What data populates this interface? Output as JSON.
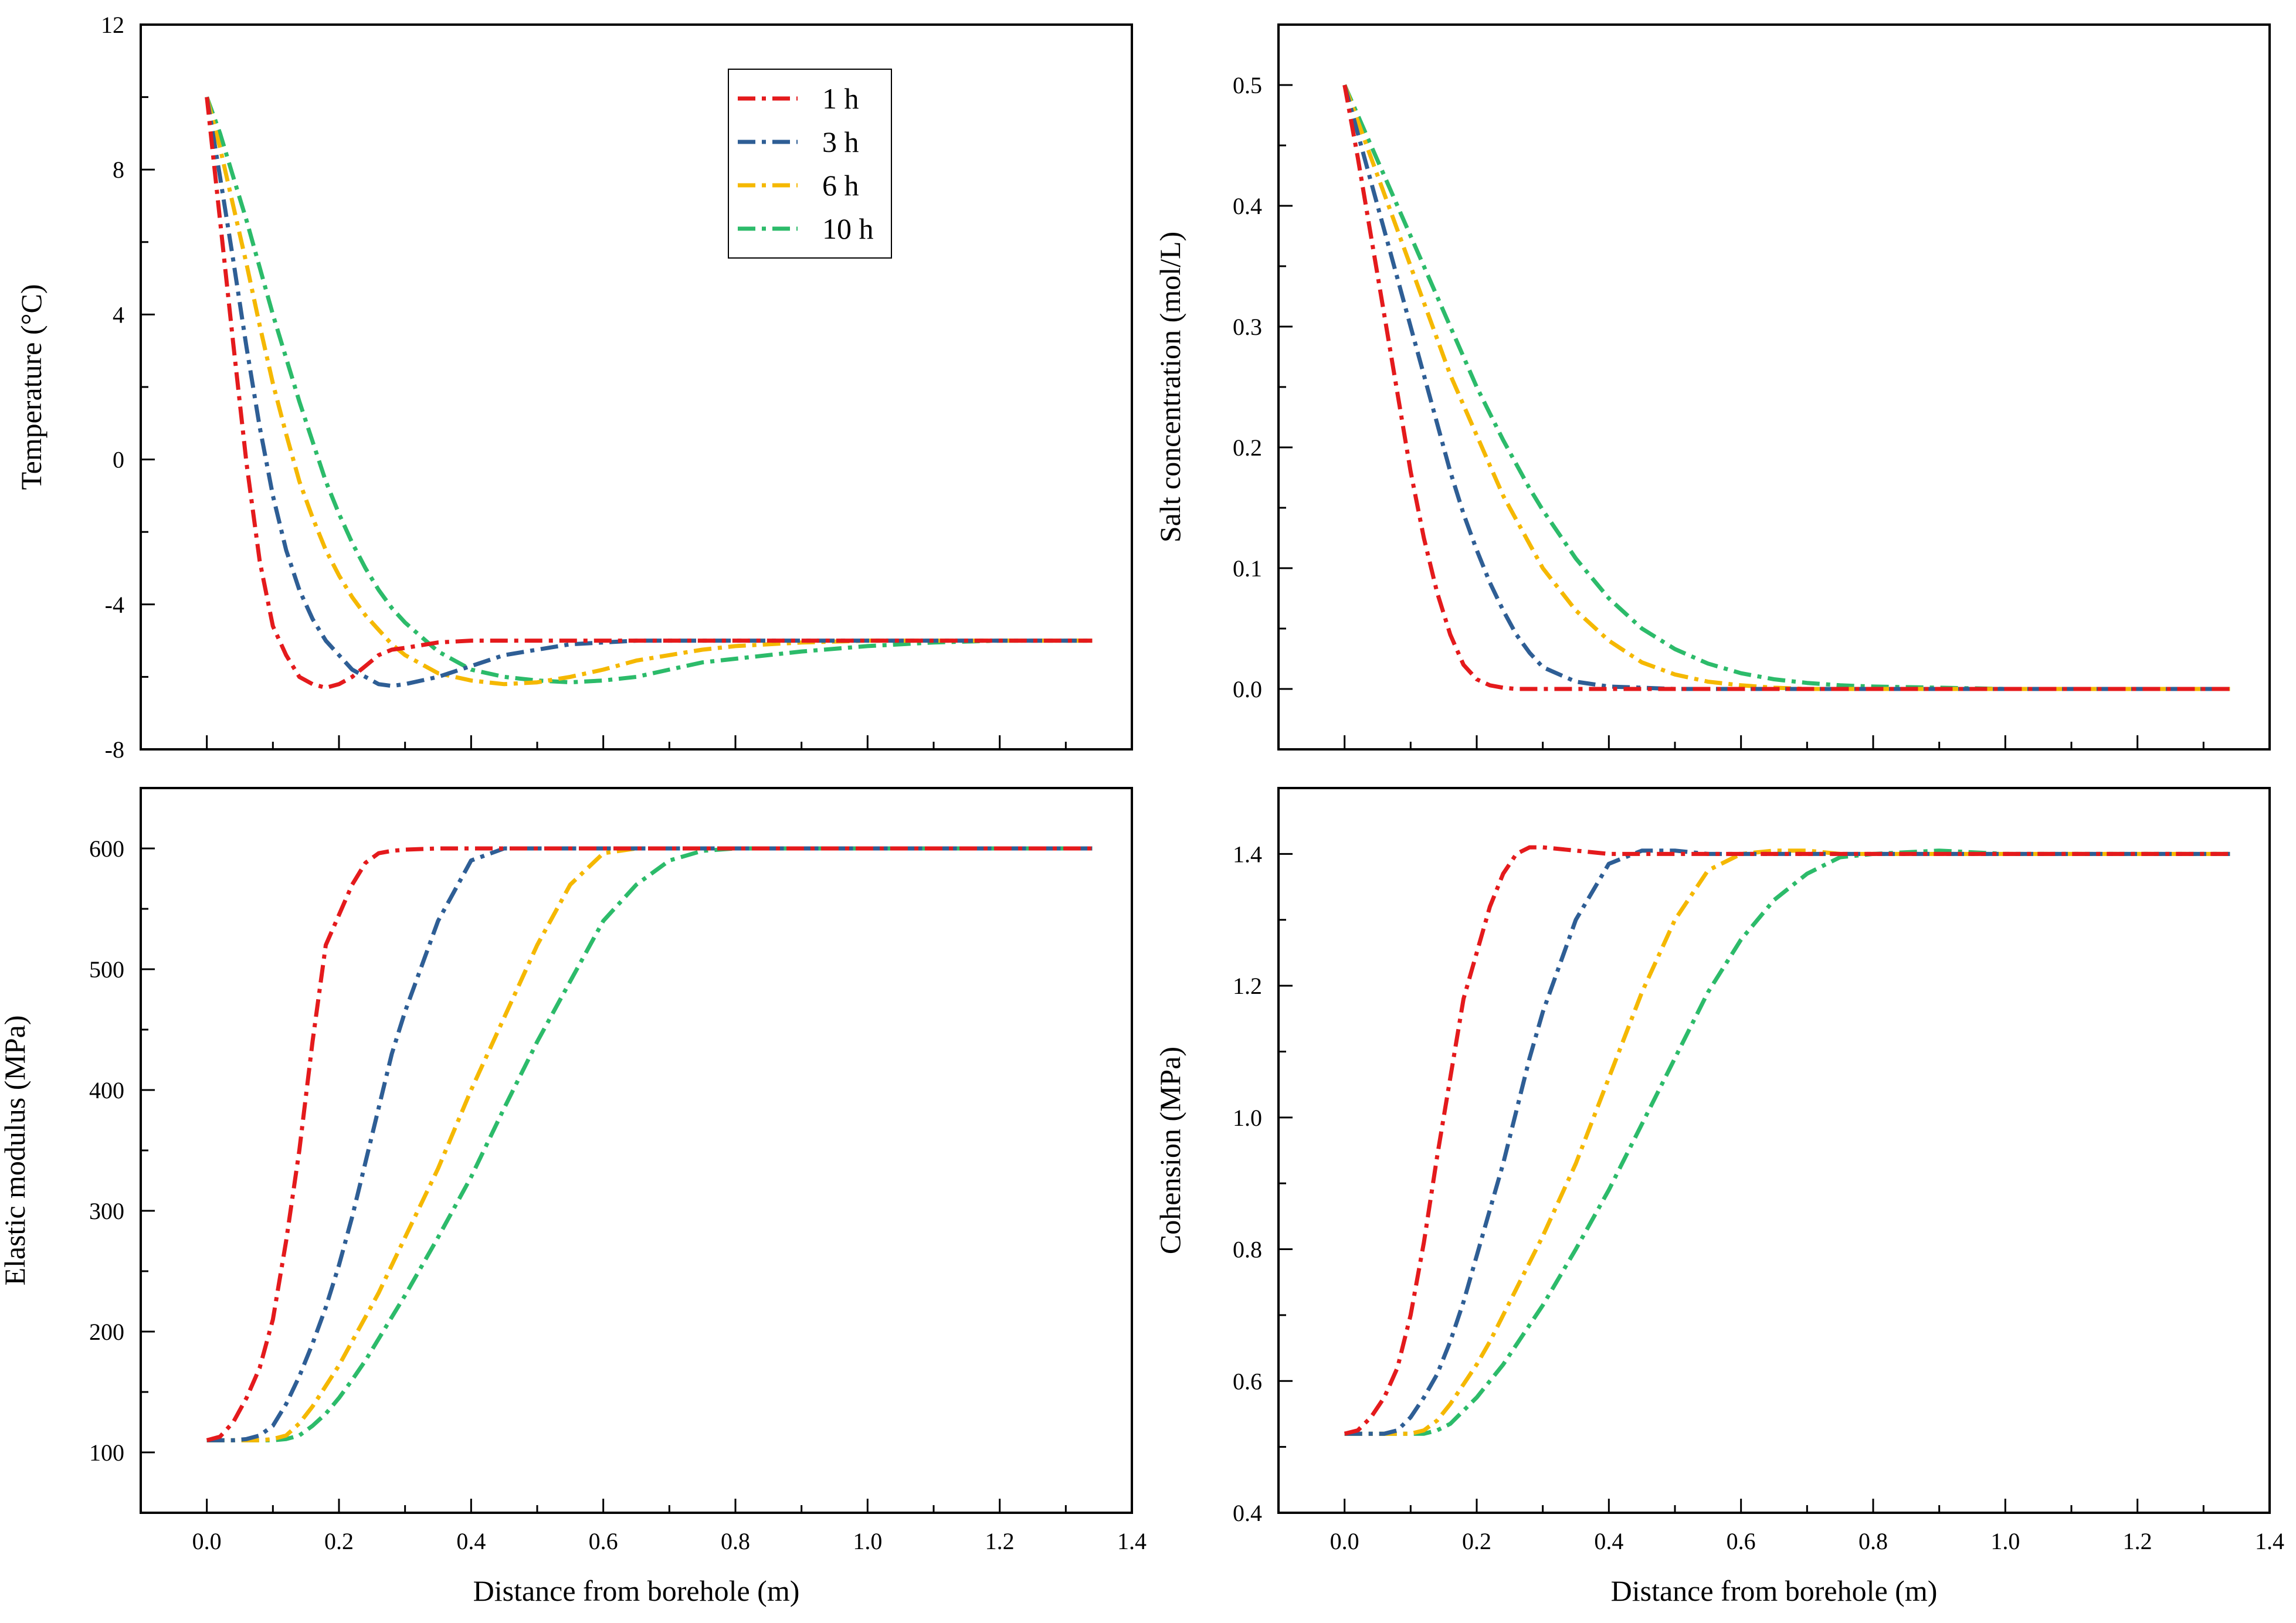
{
  "figure": {
    "x_axis_title": "Distance from borehole (m)",
    "legend_labels": [
      "1 h",
      "3 h",
      "6 h",
      "10 h"
    ]
  },
  "chart_data": [
    {
      "id": "temperature",
      "type": "line",
      "ylabel": "Temperature (°C)",
      "xlabel": "",
      "xlim": [
        -0.1,
        1.4
      ],
      "ylim": [
        -8,
        12
      ],
      "xticks": [
        0.0,
        0.2,
        0.4,
        0.6,
        0.8,
        1.0,
        1.2,
        1.4
      ],
      "yticks": [
        -8,
        -4,
        0,
        4,
        8,
        12
      ],
      "show_x_tick_labels": false,
      "legend": "top-center",
      "x": [
        0,
        0.02,
        0.04,
        0.06,
        0.08,
        0.1,
        0.12,
        0.14,
        0.16,
        0.18,
        0.2,
        0.22,
        0.24,
        0.26,
        0.28,
        0.3,
        0.35,
        0.4,
        0.45,
        0.5,
        0.55,
        0.6,
        0.65,
        0.7,
        0.75,
        0.8,
        0.9,
        1.0,
        1.1,
        1.2,
        1.34
      ],
      "series": [
        {
          "name": "1 h",
          "color": "#e41a1c",
          "values": [
            10.0,
            6.6,
            3.2,
            -0.1,
            -2.8,
            -4.6,
            -5.4,
            -6.0,
            -6.2,
            -6.3,
            -6.2,
            -6.0,
            -5.7,
            -5.4,
            -5.25,
            -5.2,
            -5.05,
            -5.0,
            -5.0,
            -5.0,
            -5.0,
            -5.0,
            -5.0,
            -5.0,
            -5.0,
            -5.0,
            -5.0,
            -5.0,
            -5.0,
            -5.0,
            -5.0
          ]
        },
        {
          "name": "3 h",
          "color": "#2e5e95",
          "values": [
            10.0,
            7.8,
            5.5,
            3.1,
            0.9,
            -1.0,
            -2.5,
            -3.6,
            -4.4,
            -5.0,
            -5.4,
            -5.8,
            -6.0,
            -6.2,
            -6.25,
            -6.2,
            -6.0,
            -5.7,
            -5.4,
            -5.25,
            -5.1,
            -5.05,
            -5.0,
            -5.0,
            -5.0,
            -5.0,
            -5.0,
            -5.0,
            -5.0,
            -5.0,
            -5.0
          ]
        },
        {
          "name": "6 h",
          "color": "#f5b800",
          "values": [
            10.0,
            8.6,
            7.0,
            5.4,
            3.7,
            2.1,
            0.7,
            -0.6,
            -1.6,
            -2.5,
            -3.2,
            -3.8,
            -4.3,
            -4.7,
            -5.1,
            -5.4,
            -5.9,
            -6.1,
            -6.2,
            -6.15,
            -6.0,
            -5.8,
            -5.55,
            -5.4,
            -5.25,
            -5.15,
            -5.05,
            -5.0,
            -5.0,
            -5.0,
            -5.0
          ]
        },
        {
          "name": "10 h",
          "color": "#2cbb6a",
          "values": [
            10.0,
            9.0,
            7.8,
            6.6,
            5.3,
            4.0,
            2.8,
            1.6,
            0.5,
            -0.6,
            -1.5,
            -2.3,
            -3.0,
            -3.6,
            -4.1,
            -4.5,
            -5.3,
            -5.8,
            -6.0,
            -6.1,
            -6.15,
            -6.1,
            -6.0,
            -5.8,
            -5.6,
            -5.5,
            -5.3,
            -5.15,
            -5.05,
            -5.0,
            -5.0
          ]
        }
      ]
    },
    {
      "id": "salt",
      "type": "line",
      "ylabel": "Salt concentration (mol/L)",
      "xlabel": "",
      "xlim": [
        -0.1,
        1.4
      ],
      "ylim": [
        -0.05,
        0.55
      ],
      "xticks": [
        0.0,
        0.2,
        0.4,
        0.6,
        0.8,
        1.0,
        1.2,
        1.4
      ],
      "yticks": [
        0.0,
        0.1,
        0.2,
        0.3,
        0.4,
        0.5
      ],
      "show_x_tick_labels": false,
      "x": [
        0,
        0.02,
        0.04,
        0.06,
        0.08,
        0.1,
        0.12,
        0.14,
        0.16,
        0.18,
        0.2,
        0.22,
        0.24,
        0.26,
        0.28,
        0.3,
        0.35,
        0.4,
        0.45,
        0.5,
        0.55,
        0.6,
        0.65,
        0.7,
        0.75,
        0.8,
        0.9,
        1.0,
        1.1,
        1.2,
        1.34
      ],
      "series": [
        {
          "name": "1 h",
          "color": "#e41a1c",
          "values": [
            0.5,
            0.44,
            0.375,
            0.31,
            0.245,
            0.18,
            0.125,
            0.08,
            0.045,
            0.02,
            0.008,
            0.003,
            0.001,
            0.0,
            0.0,
            0.0,
            0.0,
            0.0,
            0.0,
            0.0,
            0.0,
            0.0,
            0.0,
            0.0,
            0.0,
            0.0,
            0.0,
            0.0,
            0.0,
            0.0,
            0.0
          ]
        },
        {
          "name": "3 h",
          "color": "#2e5e95",
          "values": [
            0.5,
            0.46,
            0.42,
            0.38,
            0.34,
            0.3,
            0.26,
            0.22,
            0.18,
            0.145,
            0.115,
            0.088,
            0.065,
            0.045,
            0.03,
            0.018,
            0.006,
            0.002,
            0.001,
            0.0,
            0.0,
            0.0,
            0.0,
            0.0,
            0.0,
            0.0,
            0.0,
            0.0,
            0.0,
            0.0,
            0.0
          ]
        },
        {
          "name": "6 h",
          "color": "#f5b800",
          "values": [
            0.5,
            0.47,
            0.44,
            0.41,
            0.38,
            0.35,
            0.32,
            0.29,
            0.26,
            0.235,
            0.21,
            0.185,
            0.16,
            0.14,
            0.12,
            0.1,
            0.065,
            0.04,
            0.022,
            0.012,
            0.006,
            0.003,
            0.001,
            0.0,
            0.0,
            0.0,
            0.0,
            0.0,
            0.0,
            0.0,
            0.0
          ]
        },
        {
          "name": "10 h",
          "color": "#2cbb6a",
          "values": [
            0.5,
            0.475,
            0.45,
            0.425,
            0.4,
            0.375,
            0.35,
            0.325,
            0.3,
            0.275,
            0.25,
            0.228,
            0.206,
            0.186,
            0.166,
            0.148,
            0.108,
            0.075,
            0.05,
            0.033,
            0.021,
            0.013,
            0.008,
            0.005,
            0.003,
            0.002,
            0.001,
            0.0,
            0.0,
            0.0,
            0.0
          ]
        }
      ]
    },
    {
      "id": "modulus",
      "type": "line",
      "ylabel": "Elastic modulus (MPa)",
      "xlabel": "Distance from borehole (m)",
      "xlim": [
        -0.1,
        1.4
      ],
      "ylim": [
        50,
        650
      ],
      "xticks": [
        0.0,
        0.2,
        0.4,
        0.6,
        0.8,
        1.0,
        1.2,
        1.4
      ],
      "yticks": [
        100,
        200,
        300,
        400,
        500,
        600
      ],
      "show_x_tick_labels": true,
      "x": [
        0,
        0.02,
        0.04,
        0.06,
        0.08,
        0.1,
        0.12,
        0.14,
        0.16,
        0.18,
        0.2,
        0.22,
        0.24,
        0.26,
        0.28,
        0.3,
        0.35,
        0.4,
        0.45,
        0.5,
        0.55,
        0.6,
        0.65,
        0.7,
        0.75,
        0.8,
        0.9,
        1.0,
        1.1,
        1.2,
        1.34
      ],
      "series": [
        {
          "name": "1 h",
          "color": "#e41a1c",
          "values": [
            110,
            113,
            125,
            145,
            170,
            210,
            275,
            350,
            440,
            520,
            545,
            570,
            588,
            596,
            598,
            599,
            600,
            600,
            600,
            600,
            600,
            600,
            600,
            600,
            600,
            600,
            600,
            600,
            600,
            600,
            600
          ]
        },
        {
          "name": "3 h",
          "color": "#2e5e95",
          "values": [
            110,
            110,
            110,
            111,
            114,
            122,
            140,
            163,
            190,
            220,
            255,
            295,
            340,
            385,
            430,
            465,
            540,
            590,
            600,
            600,
            600,
            600,
            600,
            600,
            600,
            600,
            600,
            600,
            600,
            600,
            600
          ]
        },
        {
          "name": "6 h",
          "color": "#f5b800",
          "values": [
            110,
            110,
            110,
            110,
            110,
            111,
            114,
            124,
            138,
            155,
            172,
            192,
            212,
            232,
            255,
            278,
            335,
            400,
            460,
            520,
            570,
            596,
            600,
            600,
            600,
            600,
            600,
            600,
            600,
            600,
            600
          ]
        },
        {
          "name": "10 h",
          "color": "#2cbb6a",
          "values": [
            110,
            110,
            110,
            110,
            110,
            110,
            111,
            114,
            122,
            132,
            145,
            160,
            176,
            194,
            212,
            230,
            278,
            328,
            385,
            440,
            490,
            540,
            570,
            590,
            598,
            600,
            600,
            600,
            600,
            600,
            600
          ]
        }
      ]
    },
    {
      "id": "cohesion",
      "type": "line",
      "ylabel": "Cohension (MPa)",
      "xlabel": "Distance from borehole (m)",
      "xlim": [
        -0.1,
        1.4
      ],
      "ylim": [
        0.4,
        1.5
      ],
      "xticks": [
        0.0,
        0.2,
        0.4,
        0.6,
        0.8,
        1.0,
        1.2,
        1.4
      ],
      "yticks": [
        0.4,
        0.6,
        0.8,
        1.0,
        1.2,
        1.4
      ],
      "show_x_tick_labels": true,
      "x": [
        0,
        0.02,
        0.04,
        0.06,
        0.08,
        0.1,
        0.12,
        0.14,
        0.16,
        0.18,
        0.2,
        0.22,
        0.24,
        0.26,
        0.28,
        0.3,
        0.35,
        0.4,
        0.45,
        0.5,
        0.55,
        0.6,
        0.65,
        0.7,
        0.75,
        0.8,
        0.9,
        1.0,
        1.1,
        1.2,
        1.34
      ],
      "series": [
        {
          "name": "1 h",
          "color": "#e41a1c",
          "values": [
            0.52,
            0.525,
            0.545,
            0.575,
            0.62,
            0.7,
            0.81,
            0.94,
            1.06,
            1.18,
            1.25,
            1.32,
            1.37,
            1.4,
            1.41,
            1.41,
            1.405,
            1.4,
            1.4,
            1.4,
            1.4,
            1.4,
            1.4,
            1.4,
            1.4,
            1.4,
            1.4,
            1.4,
            1.4,
            1.4,
            1.4
          ]
        },
        {
          "name": "3 h",
          "color": "#2e5e95",
          "values": [
            0.52,
            0.52,
            0.52,
            0.52,
            0.525,
            0.545,
            0.575,
            0.61,
            0.66,
            0.72,
            0.79,
            0.86,
            0.93,
            1.01,
            1.09,
            1.16,
            1.3,
            1.385,
            1.405,
            1.405,
            1.4,
            1.4,
            1.4,
            1.4,
            1.4,
            1.4,
            1.4,
            1.4,
            1.4,
            1.4,
            1.4
          ]
        },
        {
          "name": "6 h",
          "color": "#f5b800",
          "values": [
            0.52,
            0.52,
            0.52,
            0.52,
            0.52,
            0.52,
            0.525,
            0.54,
            0.565,
            0.595,
            0.625,
            0.66,
            0.7,
            0.74,
            0.78,
            0.82,
            0.93,
            1.06,
            1.19,
            1.3,
            1.375,
            1.4,
            1.405,
            1.405,
            1.4,
            1.4,
            1.4,
            1.4,
            1.4,
            1.4,
            1.4
          ]
        },
        {
          "name": "10 h",
          "color": "#2cbb6a",
          "values": [
            0.52,
            0.52,
            0.52,
            0.52,
            0.52,
            0.52,
            0.52,
            0.525,
            0.535,
            0.555,
            0.575,
            0.6,
            0.625,
            0.655,
            0.685,
            0.715,
            0.8,
            0.89,
            0.99,
            1.09,
            1.19,
            1.27,
            1.33,
            1.37,
            1.395,
            1.4,
            1.405,
            1.4,
            1.4,
            1.4,
            1.4
          ]
        }
      ]
    }
  ]
}
